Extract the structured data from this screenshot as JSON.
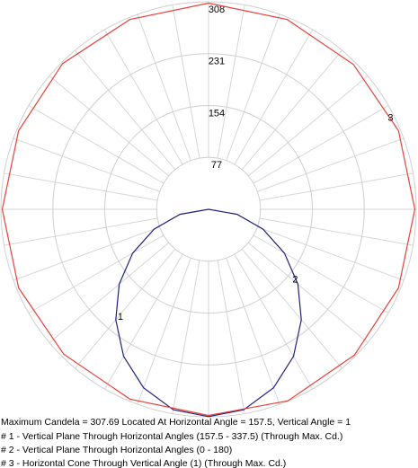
{
  "chart_data": {
    "type": "polar",
    "summary": "Maximum Candela = 307.69   Located At Horizontal Angle = 157.5, Vertical Angle = 1",
    "rlim": [
      0,
      308
    ],
    "rticks": [
      77,
      154,
      231,
      308
    ],
    "grid": true,
    "series": [
      {
        "name": "# 1 - Vertical Plane Through Horizontal Angles (157.5 - 337.5) (Through Max. Cd.)",
        "label": "1",
        "color": "#1f1f7a",
        "side": "left",
        "x": [
          0,
          10,
          20,
          30,
          40,
          50,
          60,
          70,
          80,
          90
        ],
        "values": [
          307.69,
          302,
          282,
          252,
          214,
          173,
          130,
          86,
          43,
          0
        ]
      },
      {
        "name": "# 2 - Vertical Plane Through Horizontal Angles (0 - 180)",
        "label": "2",
        "color": "#1f1f7a",
        "side": "right",
        "x": [
          0,
          10,
          20,
          30,
          40,
          50,
          60,
          70,
          80,
          90
        ],
        "values": [
          307.69,
          302,
          282,
          252,
          214,
          173,
          130,
          86,
          43,
          0
        ]
      },
      {
        "name": "# 3 - Horizontal Cone Through Vertical Angle (1) (Through Max. Cd.)",
        "label": "3",
        "color": "#e8403a",
        "side": "around",
        "x": [
          0,
          22.5,
          45,
          67.5,
          90,
          112.5,
          135,
          157.5,
          180,
          202.5,
          225,
          247.5,
          270,
          292.5,
          315,
          337.5
        ],
        "values": [
          306,
          305,
          304,
          305,
          306,
          305,
          306,
          307.69,
          306,
          305,
          304,
          305,
          306,
          305,
          306,
          305
        ]
      }
    ]
  }
}
